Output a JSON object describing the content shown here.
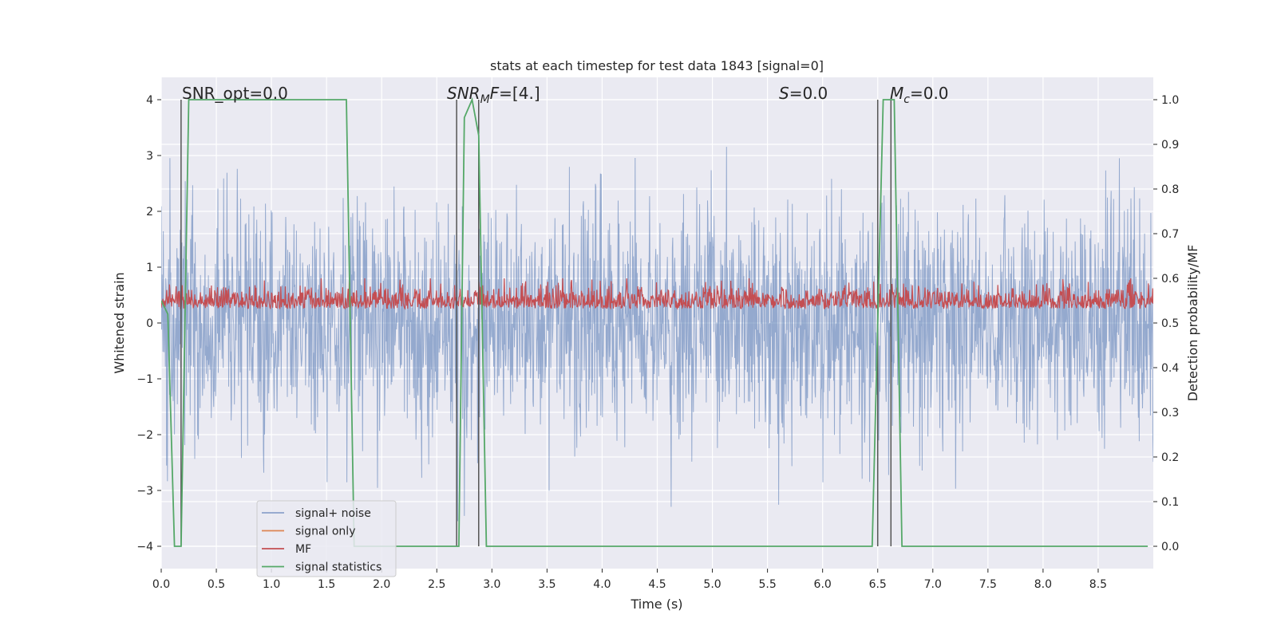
{
  "chart_data": {
    "type": "line",
    "title": "stats at each timestep for test data 1843 [signal=0]",
    "xlabel": "Time (s)",
    "ylabel": "Whitened strain",
    "ylabel_right": "Detection probability/MF",
    "xlim": [
      0.0,
      9.0
    ],
    "ylim": [
      -4.4,
      4.4
    ],
    "ylim_right": [
      -0.05,
      1.05
    ],
    "x_ticks": [
      "0.0",
      "0.5",
      "1.0",
      "1.5",
      "2.0",
      "2.5",
      "3.0",
      "3.5",
      "4.0",
      "4.5",
      "5.0",
      "5.5",
      "6.0",
      "6.5",
      "7.0",
      "7.5",
      "8.0",
      "8.5"
    ],
    "y_ticks": [
      "−4",
      "−3",
      "−2",
      "−1",
      "0",
      "1",
      "2",
      "3",
      "4"
    ],
    "y_ticks_right": [
      "0.0",
      "0.1",
      "0.2",
      "0.3",
      "0.4",
      "0.5",
      "0.6",
      "0.7",
      "0.8",
      "0.9",
      "1.0"
    ],
    "grid": true,
    "annotations": [
      {
        "text": "SNR_opt=0.0"
      },
      {
        "text": "SNR",
        "sub": "M",
        "rest": "F=[4.]"
      },
      {
        "text": "S",
        "rest": "=0.0"
      },
      {
        "text": "M",
        "sub": "c",
        "rest": "=0.0"
      }
    ],
    "vertical_markers_x": [
      0.18,
      2.68,
      2.88,
      6.5,
      6.62
    ],
    "legend_placement": "lower-left",
    "series": [
      {
        "name": "signal+ noise",
        "color": "#4c72b0",
        "kind": "noise",
        "amplitude_range": [
          -3.9,
          3.4
        ]
      },
      {
        "name": "signal only",
        "color": "#dd8452",
        "values": []
      },
      {
        "name": "MF",
        "color": "#c44e52",
        "axis": "right",
        "range": [
          0.5,
          0.6
        ]
      },
      {
        "name": "signal statistics",
        "color": "#55a868",
        "axis": "right",
        "x": [
          0.0,
          0.06,
          0.12,
          0.18,
          0.25,
          1.0,
          1.6,
          1.68,
          1.75,
          2.6,
          2.7,
          2.75,
          2.82,
          2.88,
          2.95,
          6.2,
          6.45,
          6.55,
          6.6,
          6.65,
          6.72,
          8.95
        ],
        "y": [
          0.55,
          0.52,
          0.0,
          0.0,
          1.0,
          1.0,
          1.0,
          1.0,
          0.0,
          0.0,
          0.0,
          0.96,
          1.0,
          0.92,
          0.0,
          0.0,
          0.0,
          1.0,
          1.0,
          1.0,
          0.0,
          0.0
        ]
      }
    ]
  }
}
